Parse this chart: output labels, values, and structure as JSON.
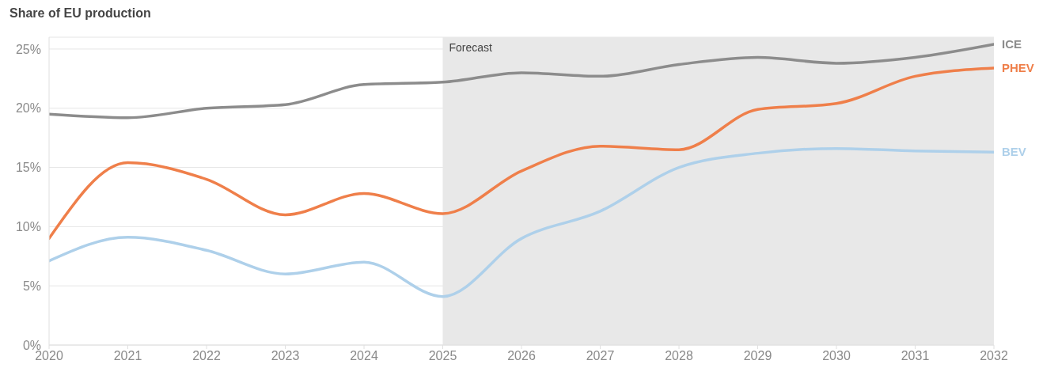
{
  "chart_data": {
    "type": "line",
    "title": "Share of EU production",
    "x": [
      2020,
      2021,
      2022,
      2023,
      2024,
      2025,
      2026,
      2027,
      2028,
      2029,
      2030,
      2031,
      2032
    ],
    "series": [
      {
        "name": "ICE",
        "color": "#8c8c8c",
        "values": [
          19.5,
          19.2,
          20.0,
          20.3,
          22.0,
          22.2,
          23.0,
          22.7,
          23.7,
          24.3,
          23.8,
          24.3,
          25.4
        ]
      },
      {
        "name": "PHEV",
        "color": "#ef7f4a",
        "values": [
          9.0,
          15.4,
          14.0,
          11.0,
          12.8,
          11.1,
          14.7,
          16.8,
          16.5,
          19.9,
          20.4,
          22.7,
          23.4
        ]
      },
      {
        "name": "BEV",
        "color": "#aed0ea",
        "values": [
          7.1,
          9.1,
          8.0,
          6.0,
          7.0,
          4.1,
          9.0,
          11.3,
          15.0,
          16.2,
          16.6,
          16.4,
          16.3
        ]
      }
    ],
    "xlim": [
      2020,
      2032
    ],
    "xticks": [
      2020,
      2021,
      2022,
      2023,
      2024,
      2025,
      2026,
      2027,
      2028,
      2029,
      2030,
      2031,
      2032
    ],
    "ylim": [
      0,
      26
    ],
    "yticks": [
      {
        "value": 0,
        "label": "0%"
      },
      {
        "value": 5,
        "label": "5%"
      },
      {
        "value": 10,
        "label": "10%"
      },
      {
        "value": 15,
        "label": "15%"
      },
      {
        "value": 20,
        "label": "20%"
      },
      {
        "value": 25,
        "label": "25%"
      }
    ],
    "grid": "y",
    "bands": [
      {
        "axis": "x",
        "from": 2025,
        "to": 2032,
        "label": "Forecast",
        "color": "#e8e8e8"
      }
    ]
  }
}
